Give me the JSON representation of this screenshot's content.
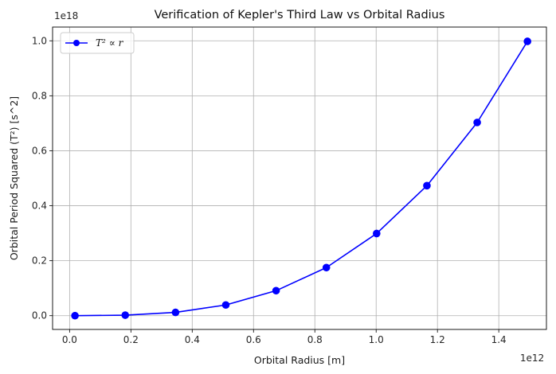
{
  "chart_data": {
    "type": "line",
    "title": "Verification of Kepler's Third Law vs Orbital Radius",
    "xlabel": "Orbital Radius [m]",
    "ylabel": "Orbital Period Squared (T²) [s^2]",
    "x_offset_label": "1e12",
    "y_offset_label": "1e18",
    "xlim": [
      -55500000000.0,
      1555500000000.0
    ],
    "ylim": [
      -5e+16,
      1.05e+18
    ],
    "x_ticks": [
      0.0,
      0.2,
      0.4,
      0.6,
      0.8,
      1.0,
      1.2,
      1.4
    ],
    "x_tick_labels": [
      "0.0",
      "0.2",
      "0.4",
      "0.6",
      "0.8",
      "1.0",
      "1.2",
      "1.4"
    ],
    "y_ticks": [
      0.0,
      0.2,
      0.4,
      0.6,
      0.8,
      1.0
    ],
    "y_tick_labels": [
      "0.0",
      "0.2",
      "0.4",
      "0.6",
      "0.8",
      "1.0"
    ],
    "grid": true,
    "legend_position": "top-left",
    "series": [
      {
        "name": "T² ∝ r",
        "color": "#0000ff",
        "marker": "circle",
        "x": [
          17600000000.0,
          181600000000.0,
          345600000000.0,
          509600000000.0,
          673600000000.0,
          837600000000.0,
          1001600000000.0,
          1165600000000.0,
          1329600000000.0,
          1493600000000.0
        ],
        "y": [
          0.0,
          2000000000000000.0,
          1.2e+16,
          3.9e+16,
          9.1e+16,
          1.75e+17,
          2.99e+17,
          4.73e+17,
          7.03e+17,
          9.98e+17
        ]
      }
    ]
  }
}
